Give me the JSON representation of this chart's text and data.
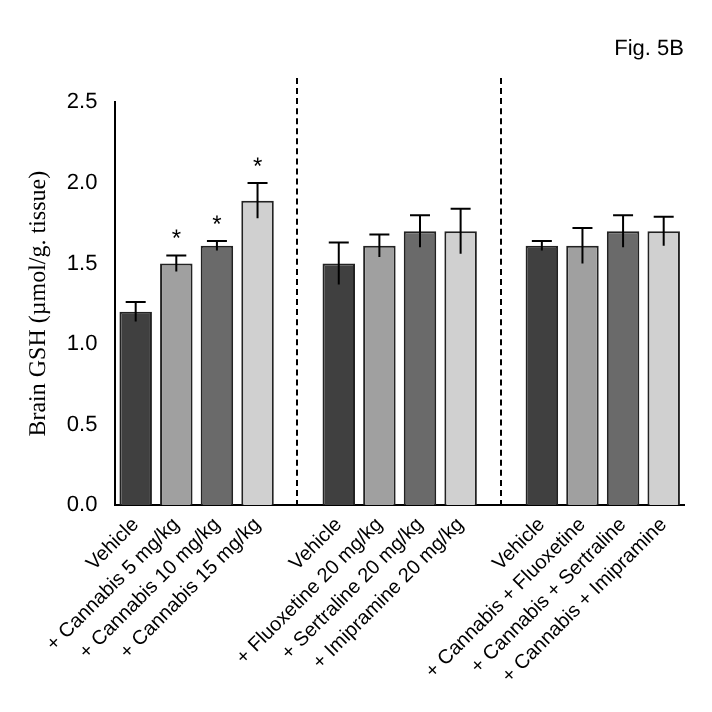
{
  "chart_data": {
    "type": "bar",
    "title": "Fig. 5B",
    "ylabel": "Brain GSH (µmol/g. tissue)",
    "categories": [
      "Vehicle",
      "+ Cannabis 5 mg/kg",
      "+ Cannabis 10 mg/kg",
      "+ Cannabis 15 mg/kg",
      null,
      "Vehicle",
      "+ Fluoxetine 20 mg/kg",
      "+ Sertraline 20 mg/kg",
      "+ Imipramine 20 mg/kg",
      null,
      "Vehicle",
      "+ Cannabis + Fluoxetine",
      "+ Cannabis + Sertraline",
      "+ Cannabis + Imipramine"
    ],
    "values": [
      1.2,
      1.5,
      1.61,
      1.89,
      null,
      1.5,
      1.61,
      1.7,
      1.7,
      null,
      1.61,
      1.61,
      1.7,
      1.7
    ],
    "errors": [
      0.06,
      0.05,
      0.03,
      0.11,
      null,
      0.13,
      0.07,
      0.1,
      0.14,
      null,
      0.03,
      0.11,
      0.1,
      0.09
    ],
    "colors": [
      "#404040",
      "#a0a0a0",
      "#6a6a6a",
      "#d0d0d0",
      "#ffffff",
      "#404040",
      "#a0a0a0",
      "#6a6a6a",
      "#d0d0d0",
      "#ffffff",
      "#404040",
      "#a0a0a0",
      "#6a6a6a",
      "#d0d0d0"
    ],
    "ylim": [
      0,
      2.5
    ],
    "yticks": [
      {
        "value": 0,
        "label": "0.0"
      },
      {
        "value": 0.5,
        "label": "0.5"
      },
      {
        "value": 1,
        "label": "1.0"
      },
      {
        "value": 1.5,
        "label": "1.5"
      },
      {
        "value": 2,
        "label": "2.0"
      },
      {
        "value": 2.5,
        "label": "2.5"
      }
    ],
    "annotations": [
      {
        "text": "*",
        "x": "+ Cannabis 5 mg/kg",
        "y": 1.55
      },
      {
        "text": "*",
        "x": "+ Cannabis 10 mg/kg",
        "y": 1.64
      },
      {
        "text": "*",
        "x": "+ Cannabis 15 mg/kg",
        "y": 2.0
      }
    ],
    "legend": false
  }
}
